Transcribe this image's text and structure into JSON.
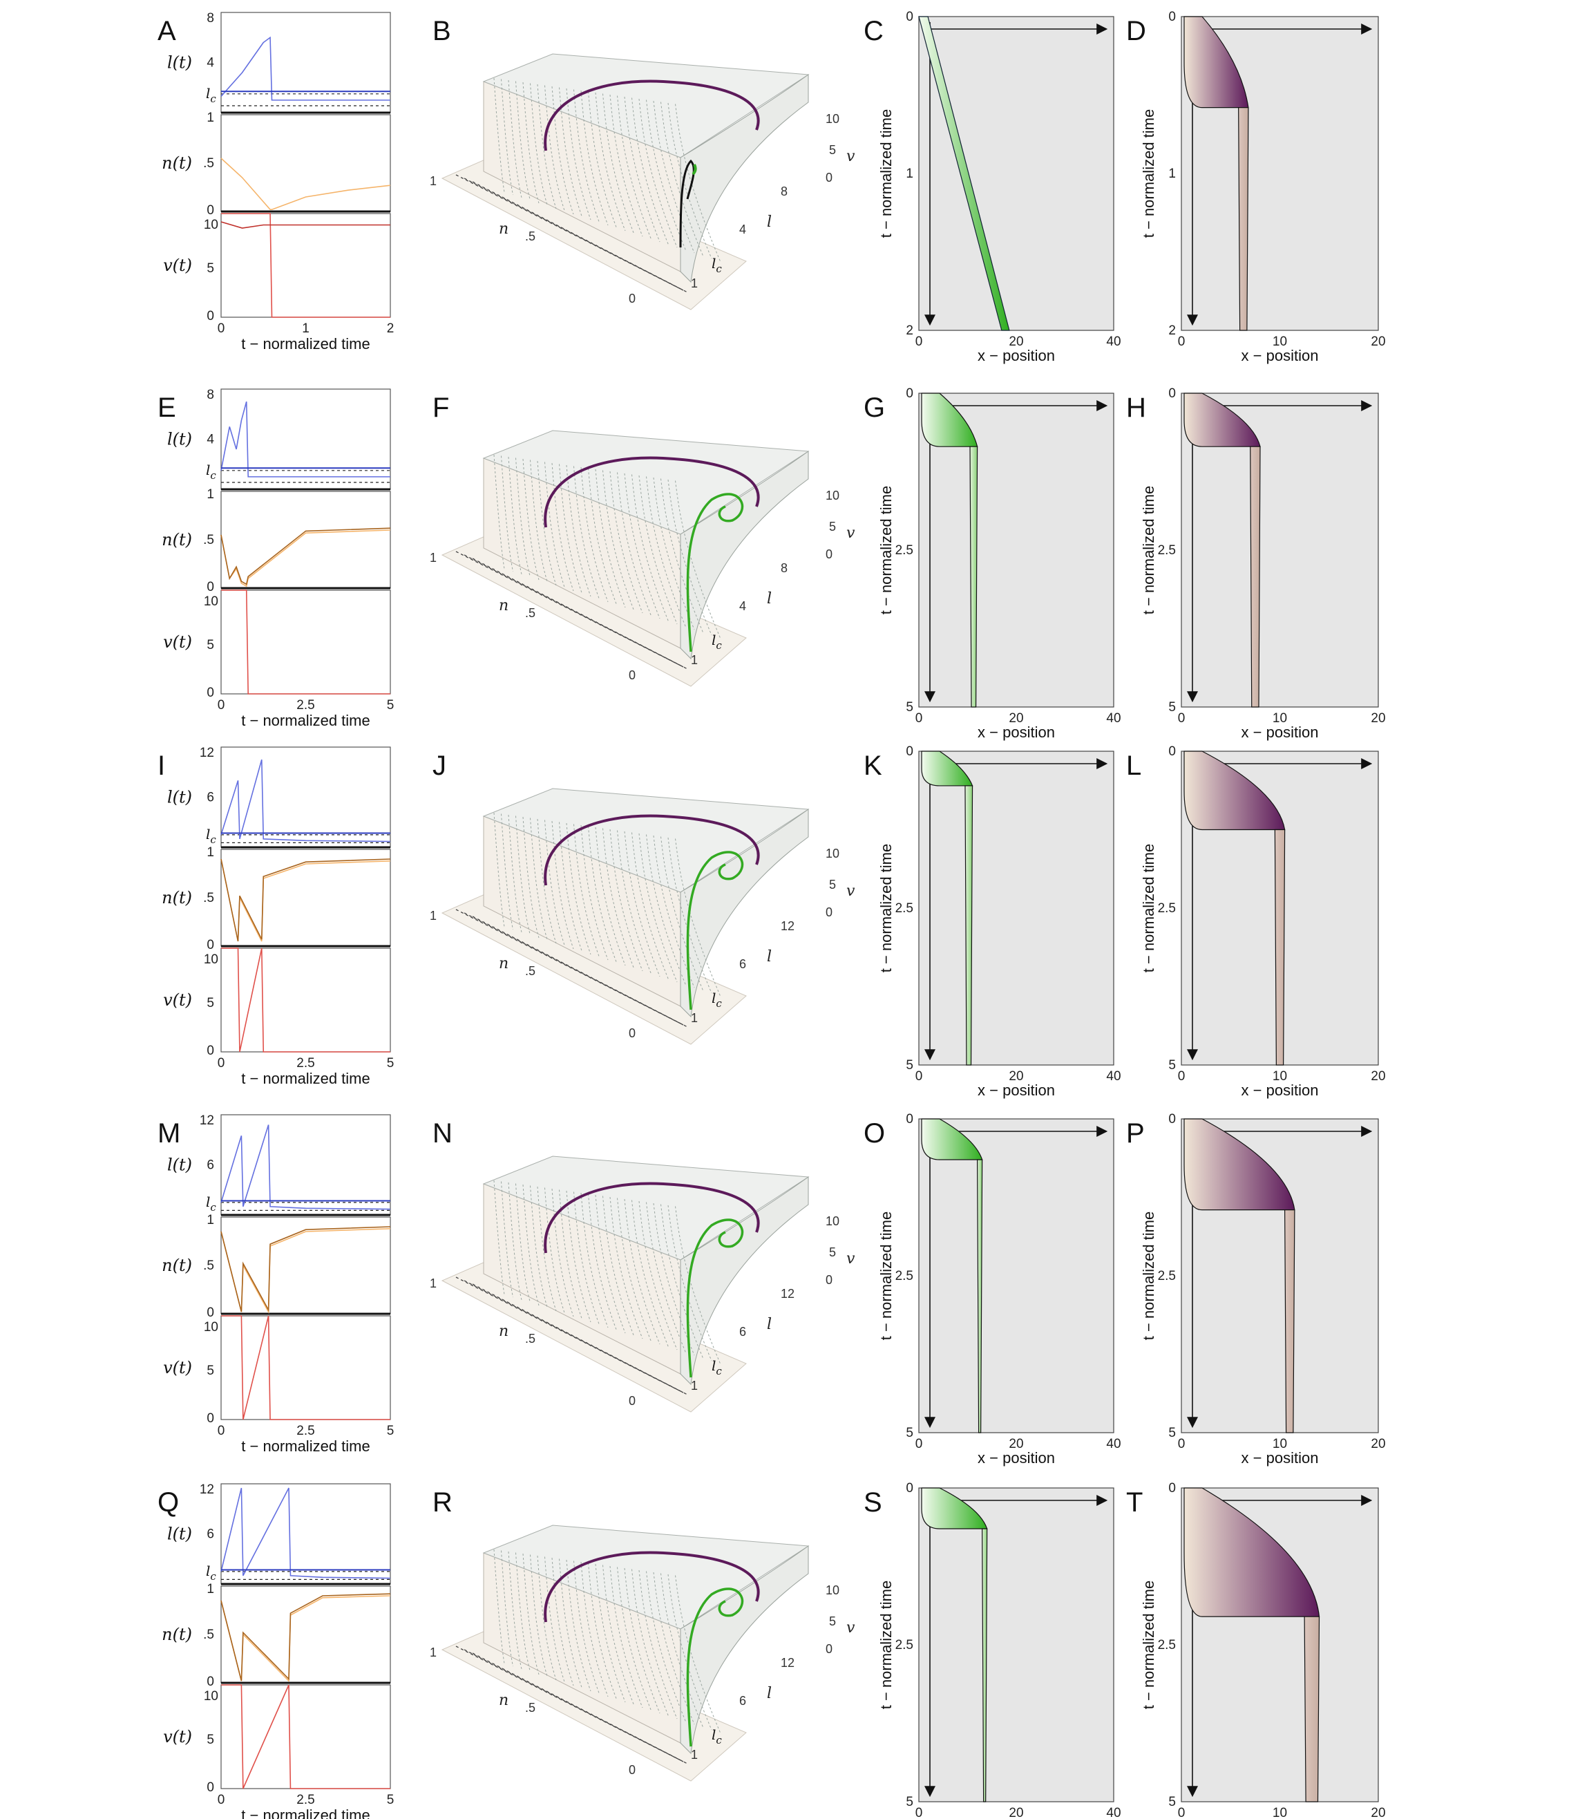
{
  "colors": {
    "l_curve": "#6470e0",
    "n_light": "#f5b46a",
    "n_dark": "#a8641e",
    "v_curve": "#e0504a",
    "green": "#33aa22",
    "purple": "#5c1a5a",
    "kymo_bg": "#e6e6e6",
    "tail": "#d8c1b8"
  },
  "axis_text": {
    "ts_xlabel": "t − normalized time",
    "l_ylabel": "l(t)",
    "n_ylabel": "n(t)",
    "v_ylabel": "v(t)",
    "lc": "l_c",
    "kymo_xlabel": "x − position",
    "kymo_ylabel": "t − normalized time",
    "p3_n": "n",
    "p3_l": "l",
    "p3_v": "v",
    "p3_lc": "l_c"
  },
  "rows": [
    {
      "ts_label": "A",
      "p3_label": "B",
      "k1_label": "C",
      "k2_label": "D",
      "l_ticks": [
        "8",
        "4"
      ],
      "n_ticks": [
        "1",
        ".5",
        "0"
      ],
      "v_ticks": [
        "10",
        "5",
        "0"
      ],
      "t_ticks": [
        "0",
        "1",
        "2"
      ],
      "p3_n_ticks": [
        "1",
        ".5",
        "0"
      ],
      "p3_l_ticks": [
        "8",
        "4",
        "1"
      ],
      "p3_v_ticks": [
        "10",
        "5",
        "0"
      ],
      "k1_t_ticks": [
        "0",
        "1",
        "2"
      ],
      "k1_x_ticks": [
        "0",
        "20",
        "40"
      ],
      "k2_t_ticks": [
        "0",
        "1",
        "2"
      ],
      "k2_x_ticks": [
        "0",
        "10",
        "20"
      ]
    },
    {
      "ts_label": "E",
      "p3_label": "F",
      "k1_label": "G",
      "k2_label": "H",
      "l_ticks": [
        "8",
        "4"
      ],
      "n_ticks": [
        "1",
        ".5",
        "0"
      ],
      "v_ticks": [
        "10",
        "5",
        "0"
      ],
      "t_ticks": [
        "0",
        "2.5",
        "5"
      ],
      "p3_n_ticks": [
        "1",
        ".5",
        "0"
      ],
      "p3_l_ticks": [
        "8",
        "4",
        "1"
      ],
      "p3_v_ticks": [
        "10",
        "5",
        "0"
      ],
      "k1_t_ticks": [
        "0",
        "2.5",
        "5"
      ],
      "k1_x_ticks": [
        "0",
        "20",
        "40"
      ],
      "k2_t_ticks": [
        "0",
        "2.5",
        "5"
      ],
      "k2_x_ticks": [
        "0",
        "10",
        "20"
      ]
    },
    {
      "ts_label": "I",
      "p3_label": "J",
      "k1_label": "K",
      "k2_label": "L",
      "l_ticks": [
        "12",
        "6"
      ],
      "n_ticks": [
        "1",
        ".5",
        "0"
      ],
      "v_ticks": [
        "10",
        "5",
        "0"
      ],
      "t_ticks": [
        "0",
        "2.5",
        "5"
      ],
      "p3_n_ticks": [
        "1",
        ".5",
        "0"
      ],
      "p3_l_ticks": [
        "12",
        "6",
        "1"
      ],
      "p3_v_ticks": [
        "10",
        "5",
        "0"
      ],
      "k1_t_ticks": [
        "0",
        "2.5",
        "5"
      ],
      "k1_x_ticks": [
        "0",
        "20",
        "40"
      ],
      "k2_t_ticks": [
        "0",
        "2.5",
        "5"
      ],
      "k2_x_ticks": [
        "0",
        "10",
        "20"
      ]
    },
    {
      "ts_label": "M",
      "p3_label": "N",
      "k1_label": "O",
      "k2_label": "P",
      "l_ticks": [
        "12",
        "6"
      ],
      "n_ticks": [
        "1",
        ".5",
        "0"
      ],
      "v_ticks": [
        "10",
        "5",
        "0"
      ],
      "t_ticks": [
        "0",
        "2.5",
        "5"
      ],
      "p3_n_ticks": [
        "1",
        ".5",
        "0"
      ],
      "p3_l_ticks": [
        "12",
        "6",
        "1"
      ],
      "p3_v_ticks": [
        "10",
        "5",
        "0"
      ],
      "k1_t_ticks": [
        "0",
        "2.5",
        "5"
      ],
      "k1_x_ticks": [
        "0",
        "20",
        "40"
      ],
      "k2_t_ticks": [
        "0",
        "2.5",
        "5"
      ],
      "k2_x_ticks": [
        "0",
        "10",
        "20"
      ]
    },
    {
      "ts_label": "Q",
      "p3_label": "R",
      "k1_label": "S",
      "k2_label": "T",
      "l_ticks": [
        "12",
        "6"
      ],
      "n_ticks": [
        "1",
        ".5",
        "0"
      ],
      "v_ticks": [
        "10",
        "5",
        "0"
      ],
      "t_ticks": [
        "0",
        "2.5",
        "5"
      ],
      "p3_n_ticks": [
        "1",
        ".5",
        "0"
      ],
      "p3_l_ticks": [
        "12",
        "6",
        "1"
      ],
      "p3_v_ticks": [
        "10",
        "5",
        "0"
      ],
      "k1_t_ticks": [
        "0",
        "2.5",
        "5"
      ],
      "k1_x_ticks": [
        "0",
        "20",
        "40"
      ],
      "k2_t_ticks": [
        "0",
        "2.5",
        "5"
      ],
      "k2_x_ticks": [
        "0",
        "10",
        "20"
      ]
    }
  ],
  "chart_data": [
    {
      "type": "line",
      "panel": "A",
      "x": [
        0,
        0.25,
        0.5,
        0.58,
        0.6,
        1,
        1.5,
        2
      ],
      "xlim": [
        0,
        2
      ],
      "series": [
        {
          "values_l": [
            1.3,
            3.2,
            5.6,
            6.0,
            1.0,
            1.0,
            1.0,
            1.0
          ]
        },
        {
          "values_n": [
            0.55,
            0.35,
            0.1,
            0.02,
            0.02,
            0.15,
            0.22,
            0.27
          ]
        },
        {
          "values_v": [
            10,
            10,
            10,
            10,
            0,
            0,
            0,
            0
          ]
        },
        {
          "values_v_dark": [
            9.2,
            8.6,
            8.9,
            8.9,
            8.9,
            8.9,
            8.9,
            8.9
          ]
        }
      ],
      "ylim_l": [
        0,
        8
      ],
      "ylim_n": [
        0,
        1
      ],
      "ylim_v": [
        0,
        10
      ]
    },
    {
      "type": "line",
      "panel": "E",
      "x": [
        0,
        0.25,
        0.45,
        0.6,
        0.75,
        0.8,
        2.5,
        5
      ],
      "xlim": [
        0,
        5
      ],
      "series": [
        {
          "values_l": [
            1.5,
            5.0,
            3.2,
            5.5,
            7.0,
            1.0,
            1.0,
            1.0
          ]
        },
        {
          "values_n": [
            0.55,
            0.1,
            0.2,
            0.05,
            0.02,
            0.1,
            0.57,
            0.6
          ]
        },
        {
          "values_v": [
            10,
            10,
            10,
            10,
            10,
            0,
            0,
            0
          ]
        }
      ],
      "ylim_l": [
        0,
        8
      ],
      "ylim_n": [
        0,
        1
      ],
      "ylim_v": [
        0,
        10
      ]
    },
    {
      "type": "line",
      "panel": "I",
      "x": [
        0,
        0.5,
        0.55,
        1.2,
        1.25,
        2.5,
        5
      ],
      "xlim": [
        0,
        5
      ],
      "series": [
        {
          "values_l": [
            1.5,
            8.0,
            1.0,
            10.5,
            1.0,
            0.8,
            0.7
          ]
        },
        {
          "values_n": [
            0.9,
            0.05,
            0.5,
            0.05,
            0.7,
            0.85,
            0.88
          ]
        },
        {
          "values_v": [
            10,
            10,
            0,
            10,
            0,
            0,
            0
          ]
        }
      ],
      "ylim_l": [
        0,
        12
      ],
      "ylim_n": [
        0,
        1
      ],
      "ylim_v": [
        0,
        10
      ]
    },
    {
      "type": "line",
      "panel": "M",
      "x": [
        0,
        0.6,
        0.65,
        1.4,
        1.45,
        2.5,
        5
      ],
      "xlim": [
        0,
        5
      ],
      "series": [
        {
          "values_l": [
            1.5,
            9.5,
            1.0,
            10.8,
            1.0,
            0.8,
            0.7
          ]
        },
        {
          "values_n": [
            0.85,
            0.02,
            0.5,
            0.02,
            0.7,
            0.85,
            0.88
          ]
        },
        {
          "values_v": [
            10,
            10,
            0,
            10,
            0,
            0,
            0
          ]
        }
      ],
      "ylim_l": [
        0,
        12
      ],
      "ylim_n": [
        0,
        1
      ],
      "ylim_v": [
        0,
        10
      ]
    },
    {
      "type": "line",
      "panel": "Q",
      "x": [
        0,
        0.6,
        0.65,
        2.0,
        2.05,
        3,
        5
      ],
      "xlim": [
        0,
        5
      ],
      "series": [
        {
          "values_l": [
            1.5,
            11.5,
            1.0,
            11.5,
            1.0,
            0.8,
            0.7
          ]
        },
        {
          "values_n": [
            0.85,
            0.02,
            0.5,
            0.02,
            0.7,
            0.88,
            0.9
          ]
        },
        {
          "values_v": [
            10,
            10,
            0,
            10,
            0,
            0,
            0
          ]
        }
      ],
      "ylim_l": [
        0,
        12
      ],
      "ylim_n": [
        0,
        1
      ],
      "ylim_v": [
        0,
        10
      ]
    },
    {
      "type": "area",
      "panel": "C",
      "x_front": [
        1,
        18
      ],
      "x_back": [
        0,
        17
      ],
      "t": [
        0,
        2
      ],
      "xlim": [
        0,
        40
      ],
      "tlim": [
        0,
        2
      ]
    },
    {
      "type": "area",
      "panel": "D",
      "t_burst": 0.58,
      "x_front_burst": 6,
      "x_tail": [
        5.8,
        6.8
      ],
      "xlim": [
        0,
        20
      ],
      "tlim": [
        0,
        2
      ]
    },
    {
      "type": "area",
      "panel": "G",
      "t_burst": 0.85,
      "x_tail": [
        10.5,
        12
      ],
      "xlim": [
        0,
        40
      ],
      "tlim": [
        0,
        5
      ]
    },
    {
      "type": "area",
      "panel": "H",
      "t_burst": 0.85,
      "x_tail": [
        7,
        8
      ],
      "xlim": [
        0,
        20
      ],
      "tlim": [
        0,
        5
      ]
    },
    {
      "type": "area",
      "panel": "K",
      "t_burst": 0.55,
      "x_tail": [
        9.5,
        11
      ],
      "xlim": [
        0,
        40
      ],
      "tlim": [
        0,
        5
      ]
    },
    {
      "type": "area",
      "panel": "L",
      "t_burst": 1.25,
      "x_tail": [
        9.5,
        10.5
      ],
      "xlim": [
        0,
        20
      ],
      "tlim": [
        0,
        5
      ]
    },
    {
      "type": "area",
      "panel": "O",
      "t_burst": 0.65,
      "x_tail": [
        12,
        13
      ],
      "xlim": [
        0,
        40
      ],
      "tlim": [
        0,
        5
      ]
    },
    {
      "type": "area",
      "panel": "P",
      "t_burst": 1.45,
      "x_tail": [
        10.5,
        11.5
      ],
      "xlim": [
        0,
        20
      ],
      "tlim": [
        0,
        5
      ]
    },
    {
      "type": "area",
      "panel": "S",
      "t_burst": 0.65,
      "x_tail": [
        13,
        14
      ],
      "xlim": [
        0,
        40
      ],
      "tlim": [
        0,
        5
      ]
    },
    {
      "type": "area",
      "panel": "T",
      "t_burst": 2.05,
      "x_tail": [
        12.5,
        14
      ],
      "xlim": [
        0,
        20
      ],
      "tlim": [
        0,
        5
      ]
    }
  ]
}
